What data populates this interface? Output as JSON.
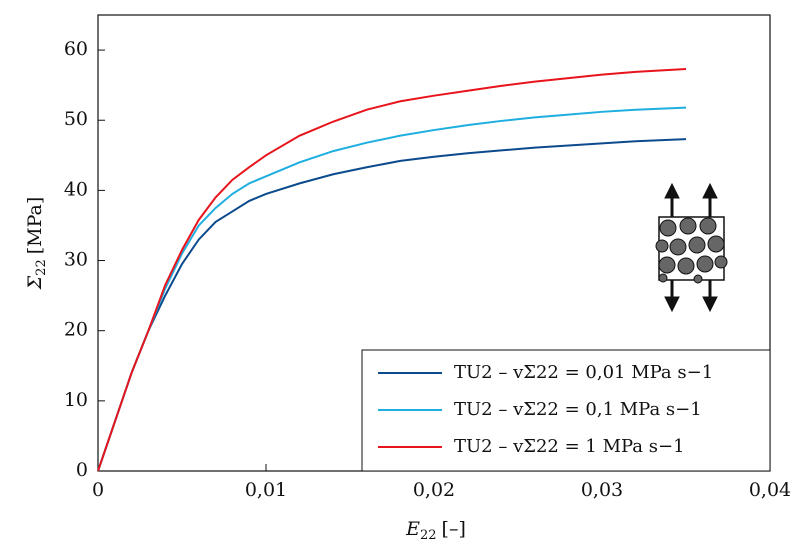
{
  "chart_data": {
    "type": "line",
    "xlabel": {
      "symbol": "E",
      "sub": "22",
      "unit": "[–]"
    },
    "ylabel": {
      "symbol": "Σ",
      "sub": "22",
      "unit": "[MPa]"
    },
    "x": [
      0,
      0.002,
      0.003,
      0.004,
      0.005,
      0.006,
      0.007,
      0.008,
      0.009,
      0.01,
      0.012,
      0.014,
      0.016,
      0.018,
      0.02,
      0.022,
      0.024,
      0.026,
      0.028,
      0.03,
      0.032,
      0.035
    ],
    "series": [
      {
        "name": "TU2 – vΣ22 = 0,01 MPa s−1",
        "color": "#0b4a8c",
        "values": [
          0,
          14,
          20,
          25,
          29.5,
          33,
          35.5,
          37,
          38.5,
          39.5,
          41,
          42.3,
          43.3,
          44.2,
          44.8,
          45.3,
          45.7,
          46.1,
          46.4,
          46.7,
          47,
          47.3
        ]
      },
      {
        "name": "TU2 – vΣ22 = 0,1 MPa s−1",
        "color": "#1eaee0",
        "values": [
          0,
          14,
          20,
          26,
          31,
          35,
          37.5,
          39.5,
          41,
          42,
          44,
          45.6,
          46.8,
          47.8,
          48.6,
          49.3,
          49.9,
          50.4,
          50.8,
          51.2,
          51.5,
          51.8
        ]
      },
      {
        "name": "TU2 – vΣ22 = 1 MPa s−1",
        "color": "#e8141c",
        "values": [
          0,
          14,
          20,
          26.5,
          31.5,
          35.8,
          39,
          41.5,
          43.3,
          45,
          47.8,
          49.8,
          51.5,
          52.7,
          53.5,
          54.2,
          54.9,
          55.5,
          56,
          56.5,
          56.9,
          57.3
        ]
      }
    ],
    "xlim": [
      0,
      0.04
    ],
    "xticks": [
      0,
      {
        "value": 0.01,
        "label": "0,01"
      },
      {
        "value": 0.02,
        "label": "0,02"
      },
      {
        "value": 0.03,
        "label": "0,03"
      },
      {
        "value": 0.04,
        "label": "0,04"
      }
    ],
    "ylim": [
      0,
      65
    ],
    "yticks": [
      0,
      10,
      20,
      30,
      40,
      50,
      60
    ],
    "legend": "lower right"
  }
}
